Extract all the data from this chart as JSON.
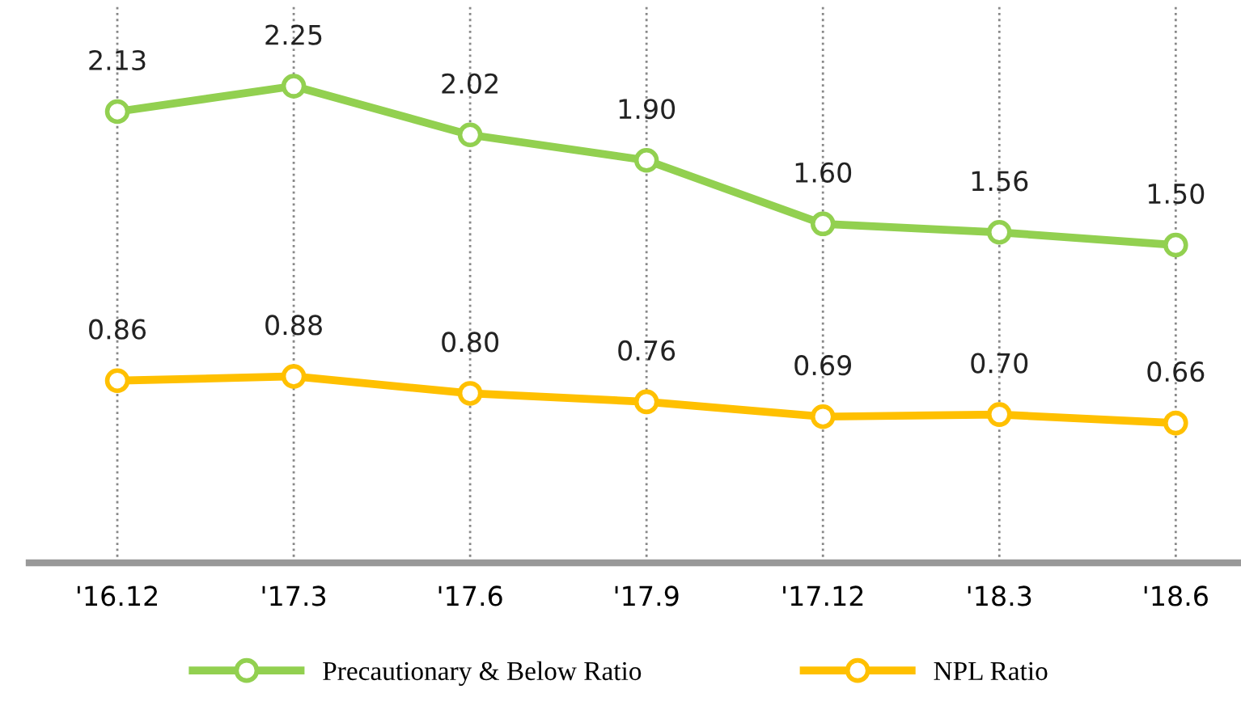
{
  "chart_data": {
    "type": "line",
    "categories": [
      "'16.12",
      "'17.3",
      "'17.6",
      "'17.9",
      "'17.12",
      "'18.3",
      "'18.6"
    ],
    "series": [
      {
        "name": "Precautionary & Below Ratio",
        "color": "#92d050",
        "values": [
          2.13,
          2.25,
          2.02,
          1.9,
          1.6,
          1.56,
          1.5
        ],
        "value_labels": [
          "2.13",
          "2.25",
          "2.02",
          "1.90",
          "1.60",
          "1.56",
          "1.50"
        ]
      },
      {
        "name": "NPL Ratio",
        "color": "#ffc000",
        "values": [
          0.86,
          0.88,
          0.8,
          0.76,
          0.69,
          0.7,
          0.66
        ],
        "value_labels": [
          "0.86",
          "0.88",
          "0.80",
          "0.76",
          "0.69",
          "0.70",
          "0.66"
        ]
      }
    ],
    "ylim": [
      0,
      2.64
    ],
    "tick_labels": "x",
    "grid": "x",
    "legend": "bottom",
    "marker": "circle",
    "line_style": "solid"
  }
}
